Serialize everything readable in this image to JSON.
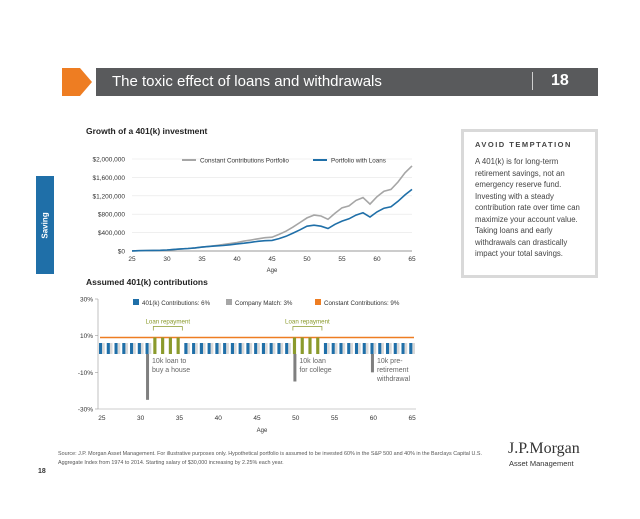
{
  "header": {
    "title": "The toxic effect of loans and withdrawals",
    "page_number": "18"
  },
  "side_tab": {
    "label": "Saving"
  },
  "sidebar": {
    "heading": "AVOID TEMPTATION",
    "text": "A 401(k) is for long-term retirement savings, not an emergency reserve fund. Investing with a steady contribution rate over time can maximize your account value. Taking loans and early withdrawals can drastically impact your total savings."
  },
  "footnote": "Source: J.P. Morgan Asset Management. For illustrative purposes only. Hypothetical portfolio is assumed to be invested 60% in the S&P 500 and 40% in the Barclays Capital U.S. Aggregate Index from 1974 to 2014. Starting salary of $30,000 increasing by 2.25% each year.",
  "page_footer_number": "18",
  "logo": {
    "main": "J.P.Morgan",
    "sub": "Asset Management"
  },
  "colors": {
    "header_bg": "#595a5c",
    "orange": "#ee7d22",
    "blue": "#1f6fa8",
    "gray": "#a6a6a6",
    "green": "#8a9a2c",
    "navy": "#1b3f73"
  },
  "chart_data": [
    {
      "type": "line",
      "title": "Growth of a 401(k) investment",
      "xlabel": "Age",
      "ylabel": "",
      "x": [
        25,
        26,
        27,
        28,
        29,
        30,
        31,
        32,
        33,
        34,
        35,
        36,
        37,
        38,
        39,
        40,
        41,
        42,
        43,
        44,
        45,
        46,
        47,
        48,
        49,
        50,
        51,
        52,
        53,
        54,
        55,
        56,
        57,
        58,
        59,
        60,
        61,
        62,
        63,
        64,
        65
      ],
      "xticks": [
        25,
        30,
        35,
        40,
        45,
        50,
        55,
        60,
        65
      ],
      "ylim": [
        0,
        2000000
      ],
      "yticks": [
        0,
        400000,
        800000,
        1200000,
        1600000,
        2000000
      ],
      "ytick_labels": [
        "$0",
        "$400,000",
        "$800,000",
        "$1,200,000",
        "$1,600,000",
        "$2,000,000"
      ],
      "legend_position": "top",
      "series": [
        {
          "name": "Constant Contributions Portfolio",
          "color": "#a6a6a6",
          "values": [
            3000,
            6500,
            10000,
            13000,
            16000,
            22000,
            35000,
            45000,
            55000,
            68000,
            85000,
            100000,
            120000,
            140000,
            160000,
            185000,
            215000,
            240000,
            265000,
            290000,
            300000,
            360000,
            430000,
            520000,
            620000,
            720000,
            780000,
            760000,
            690000,
            820000,
            940000,
            980000,
            1100000,
            1160000,
            1020000,
            1180000,
            1300000,
            1340000,
            1500000,
            1700000,
            1850000
          ]
        },
        {
          "name": "Portfolio with Loans",
          "color": "#1f6fa8",
          "values": [
            3000,
            6500,
            10000,
            13000,
            16000,
            22000,
            35000,
            45000,
            55000,
            68000,
            85000,
            100000,
            110000,
            120000,
            135000,
            155000,
            170000,
            190000,
            210000,
            225000,
            230000,
            270000,
            320000,
            390000,
            460000,
            540000,
            560000,
            540000,
            490000,
            580000,
            650000,
            700000,
            780000,
            830000,
            740000,
            850000,
            930000,
            960000,
            1080000,
            1220000,
            1340000
          ]
        }
      ]
    },
    {
      "type": "bar",
      "title": "Assumed 401(k) contributions",
      "xlabel": "Age",
      "x_range": [
        25,
        66
      ],
      "xticks": [
        25,
        30,
        35,
        40,
        45,
        50,
        55,
        60,
        65
      ],
      "ylim": [
        -30,
        30
      ],
      "yticks": [
        -30,
        -10,
        10,
        30
      ],
      "ytick_labels": [
        "-30%",
        "-10%",
        "10%",
        "30%"
      ],
      "legend_position": "top",
      "legend": [
        {
          "name": "401(k) Contributions: 6%",
          "color": "#1f6fa8"
        },
        {
          "name": "Company Match: 3%",
          "color": "#a6a6a6"
        },
        {
          "name": "Constant Contributions: 9%",
          "color": "#ee7d22"
        }
      ],
      "constant_contribution_level": 9,
      "contribution_ages": [
        25,
        26,
        27,
        28,
        29,
        30,
        31,
        32,
        33,
        34,
        35,
        36,
        37,
        38,
        39,
        40,
        41,
        42,
        43,
        44,
        45,
        46,
        47,
        48,
        49,
        50,
        51,
        52,
        53,
        54,
        55,
        56,
        57,
        58,
        59,
        60,
        61,
        62,
        63,
        64,
        65
      ],
      "contribution_values": [
        6,
        6,
        6,
        6,
        6,
        6,
        6,
        6,
        6,
        6,
        6,
        6,
        6,
        6,
        6,
        6,
        6,
        6,
        6,
        6,
        6,
        6,
        6,
        6,
        6,
        6,
        6,
        6,
        6,
        6,
        6,
        6,
        6,
        6,
        6,
        6,
        6,
        6,
        6,
        6,
        6
      ],
      "loan_repayment": [
        {
          "label": "Loan repayment",
          "ages": [
            32,
            33,
            34,
            35
          ],
          "value": 9
        },
        {
          "label": "Loan repayment",
          "ages": [
            50,
            51,
            52,
            53
          ],
          "value": 9
        }
      ],
      "withdrawals": [
        {
          "age": 31,
          "value": -25,
          "label": "10k loan to buy a house"
        },
        {
          "age": 50,
          "value": -15,
          "label": "10k loan for college"
        },
        {
          "age": 60,
          "value": -10,
          "label": "10k pre-retirement withdrawal"
        }
      ]
    }
  ]
}
